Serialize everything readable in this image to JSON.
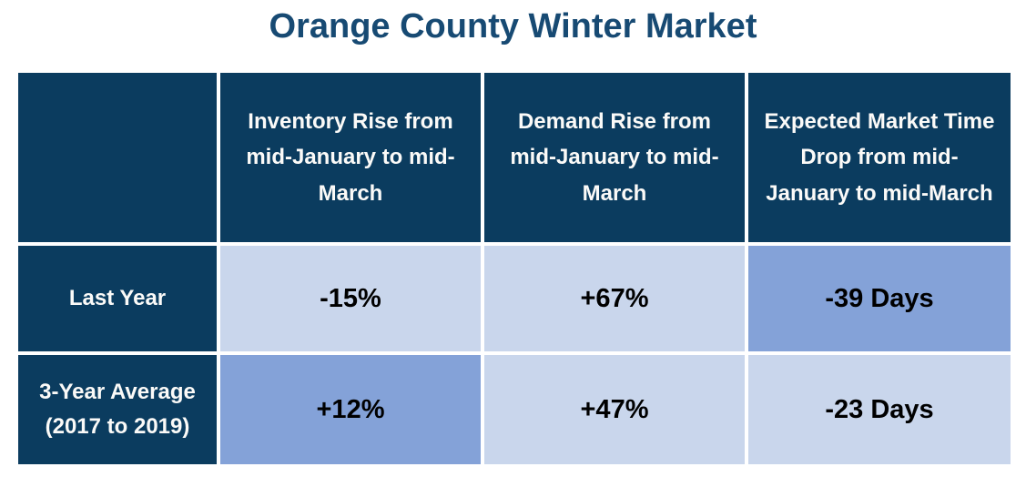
{
  "title": "Orange County Winter Market",
  "colors": {
    "title_text": "#174A73",
    "header_bg": "#0B3C5F",
    "header_text": "#FFFFFF",
    "light_cell_bg": "#C9D6EC",
    "medium_cell_bg": "#84A2D8",
    "value_text": "#000000",
    "grid_gap": "#FFFFFF"
  },
  "table": {
    "columns": [
      "",
      "Inventory Rise from mid-January to mid-March",
      "Demand Rise from mid-January to mid-March",
      "Expected Market Time Drop from mid-January to mid-March"
    ],
    "rows": [
      {
        "label": "Last Year",
        "values": [
          "-15%",
          "+67%",
          "-39 Days"
        ]
      },
      {
        "label": "3-Year Average (2017 to 2019)",
        "values": [
          "+12%",
          "+47%",
          "-23 Days"
        ]
      }
    ]
  },
  "chart_data": {
    "type": "table",
    "title": "Orange County Winter Market",
    "columns": [
      "",
      "Inventory Rise from mid-January to mid-March",
      "Demand Rise from mid-January to mid-March",
      "Expected Market Time Drop from mid-January to mid-March"
    ],
    "rows": [
      [
        "Last Year",
        "-15%",
        "+67%",
        "-39 Days"
      ],
      [
        "3-Year Average (2017 to 2019)",
        "+12%",
        "+47%",
        "-23 Days"
      ]
    ],
    "numeric_values": {
      "last_year": {
        "inventory_rise_pct": -15,
        "demand_rise_pct": 67,
        "market_time_drop_days": -39
      },
      "three_year_average_2017_2019": {
        "inventory_rise_pct": 12,
        "demand_rise_pct": 47,
        "market_time_drop_days": -23
      }
    },
    "cell_shading": [
      [
        "navy",
        "light",
        "light",
        "medium"
      ],
      [
        "navy",
        "medium",
        "light",
        "light"
      ]
    ],
    "header_shading": "navy",
    "layout_hints": "white 4px gridlines between cells; header row and row-label column dark navy with white bold text; value cells shaded light or medium blue with black bold text"
  }
}
